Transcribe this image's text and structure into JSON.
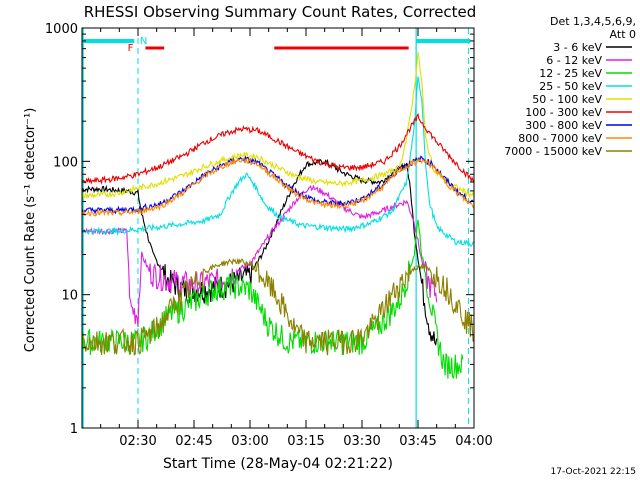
{
  "chart_data": {
    "type": "line",
    "title": "RHESSI Observing Summary Count Rates, Corrected",
    "xlabel": "Start Time (28-May-04 02:21:22)",
    "ylabel": "Corrected Count Rate (s⁻¹ detector⁻¹)",
    "y_scale": "log",
    "ylim": [
      1,
      1000
    ],
    "xlim_minutes": [
      -15,
      90
    ],
    "x_ticks": [
      {
        "t": 0,
        "label": "02:30"
      },
      {
        "t": 15,
        "label": "02:45"
      },
      {
        "t": 30,
        "label": "03:00"
      },
      {
        "t": 45,
        "label": "03:15"
      },
      {
        "t": 60,
        "label": "03:30"
      },
      {
        "t": 75,
        "label": "03:45"
      },
      {
        "t": 90,
        "label": "04:00"
      }
    ],
    "y_ticks": [
      {
        "v": 1,
        "label": "1"
      },
      {
        "v": 10,
        "label": "10"
      },
      {
        "v": 100,
        "label": "100"
      },
      {
        "v": 1000,
        "label": "1000"
      }
    ],
    "legend_header": [
      "Det 1,3,4,5,6,9,",
      "Att 0"
    ],
    "legend_position": "right",
    "series": [
      {
        "name": "3 - 6 keV",
        "color": "#000000",
        "points": [
          [
            -15,
            62
          ],
          [
            -10,
            62
          ],
          [
            -3,
            60
          ],
          [
            0,
            58
          ],
          [
            1,
            40
          ],
          [
            4,
            20
          ],
          [
            8,
            13
          ],
          [
            12,
            11
          ],
          [
            18,
            11
          ],
          [
            24,
            12
          ],
          [
            30,
            14
          ],
          [
            34,
            22
          ],
          [
            38,
            40
          ],
          [
            42,
            70
          ],
          [
            45,
            95
          ],
          [
            50,
            100
          ],
          [
            55,
            82
          ],
          [
            60,
            72
          ],
          [
            65,
            70
          ],
          [
            70,
            88
          ],
          [
            72,
            96
          ],
          [
            73,
            60
          ],
          [
            74,
            30
          ],
          [
            76,
            12
          ],
          [
            78,
            6
          ],
          [
            80,
            4
          ]
        ]
      },
      {
        "name": "6 - 12 keV",
        "color": "#e020e0",
        "points": [
          [
            -15,
            30
          ],
          [
            -3,
            30
          ],
          [
            -2,
            8
          ],
          [
            0,
            7
          ],
          [
            1,
            20
          ],
          [
            3,
            15
          ],
          [
            8,
            13
          ],
          [
            15,
            12
          ],
          [
            22,
            13
          ],
          [
            30,
            17
          ],
          [
            36,
            30
          ],
          [
            42,
            50
          ],
          [
            46,
            65
          ],
          [
            50,
            58
          ],
          [
            55,
            45
          ],
          [
            60,
            38
          ],
          [
            65,
            42
          ],
          [
            70,
            48
          ],
          [
            72,
            50
          ],
          [
            74,
            35
          ],
          [
            76,
            18
          ],
          [
            78,
            12
          ],
          [
            80,
            10
          ]
        ]
      },
      {
        "name": "12 - 25 keV",
        "color": "#00dd00",
        "points": [
          [
            -15,
            4.5
          ],
          [
            -3,
            4.5
          ],
          [
            0,
            4.5
          ],
          [
            3,
            5
          ],
          [
            8,
            7
          ],
          [
            15,
            9
          ],
          [
            20,
            11
          ],
          [
            25,
            12
          ],
          [
            30,
            11
          ],
          [
            35,
            6
          ],
          [
            40,
            4.5
          ],
          [
            50,
            4.5
          ],
          [
            60,
            4.5
          ],
          [
            65,
            6
          ],
          [
            70,
            9
          ],
          [
            74,
            20
          ],
          [
            75,
            38
          ],
          [
            76,
            20
          ],
          [
            78,
            10
          ],
          [
            80,
            5
          ],
          [
            82,
            3
          ],
          [
            87,
            3
          ]
        ]
      },
      {
        "name": "25 - 50 keV",
        "color": "#00e0e0",
        "points": [
          [
            -15,
            30
          ],
          [
            -5,
            30
          ],
          [
            0,
            31
          ],
          [
            5,
            32
          ],
          [
            12,
            34
          ],
          [
            18,
            36
          ],
          [
            22,
            40
          ],
          [
            25,
            58
          ],
          [
            27,
            70
          ],
          [
            29,
            80
          ],
          [
            31,
            68
          ],
          [
            34,
            48
          ],
          [
            38,
            38
          ],
          [
            44,
            33
          ],
          [
            50,
            32
          ],
          [
            56,
            31
          ],
          [
            62,
            34
          ],
          [
            68,
            42
          ],
          [
            72,
            70
          ],
          [
            74,
            180
          ],
          [
            75,
            420
          ],
          [
            76,
            300
          ],
          [
            77,
            100
          ],
          [
            78,
            50
          ],
          [
            80,
            32
          ],
          [
            85,
            25
          ],
          [
            90,
            24
          ]
        ]
      },
      {
        "name": "50 - 100 keV",
        "color": "#e0e000",
        "points": [
          [
            -15,
            55
          ],
          [
            -10,
            56
          ],
          [
            -5,
            58
          ],
          [
            0,
            63
          ],
          [
            5,
            68
          ],
          [
            12,
            78
          ],
          [
            18,
            92
          ],
          [
            24,
            105
          ],
          [
            28,
            112
          ],
          [
            32,
            108
          ],
          [
            36,
            94
          ],
          [
            42,
            78
          ],
          [
            48,
            70
          ],
          [
            54,
            68
          ],
          [
            60,
            72
          ],
          [
            66,
            80
          ],
          [
            70,
            90
          ],
          [
            72,
            150
          ],
          [
            74,
            350
          ],
          [
            75,
            650
          ],
          [
            76,
            400
          ],
          [
            77,
            150
          ],
          [
            79,
            90
          ],
          [
            82,
            72
          ],
          [
            86,
            62
          ],
          [
            90,
            55
          ]
        ]
      },
      {
        "name": "100 - 300 keV",
        "color": "#ee0000",
        "points": [
          [
            -15,
            70
          ],
          [
            -10,
            72
          ],
          [
            -5,
            75
          ],
          [
            0,
            80
          ],
          [
            6,
            92
          ],
          [
            12,
            110
          ],
          [
            18,
            140
          ],
          [
            24,
            165
          ],
          [
            28,
            175
          ],
          [
            32,
            170
          ],
          [
            36,
            150
          ],
          [
            42,
            120
          ],
          [
            48,
            100
          ],
          [
            54,
            90
          ],
          [
            60,
            90
          ],
          [
            66,
            100
          ],
          [
            70,
            130
          ],
          [
            73,
            180
          ],
          [
            75,
            215
          ],
          [
            77,
            180
          ],
          [
            80,
            140
          ],
          [
            84,
            105
          ],
          [
            88,
            80
          ],
          [
            90,
            70
          ]
        ]
      },
      {
        "name": "300 - 800 keV",
        "color": "#0000ee",
        "points": [
          [
            -15,
            43
          ],
          [
            -10,
            43
          ],
          [
            -5,
            43
          ],
          [
            0,
            44
          ],
          [
            6,
            48
          ],
          [
            12,
            60
          ],
          [
            18,
            80
          ],
          [
            24,
            98
          ],
          [
            28,
            105
          ],
          [
            32,
            98
          ],
          [
            36,
            80
          ],
          [
            42,
            60
          ],
          [
            48,
            50
          ],
          [
            54,
            48
          ],
          [
            60,
            52
          ],
          [
            66,
            68
          ],
          [
            70,
            88
          ],
          [
            74,
            100
          ],
          [
            76,
            105
          ],
          [
            79,
            95
          ],
          [
            82,
            75
          ],
          [
            86,
            58
          ],
          [
            90,
            48
          ]
        ]
      },
      {
        "name": "800 - 7000 keV",
        "color": "#ff8800",
        "points": [
          [
            -15,
            41
          ],
          [
            -10,
            41
          ],
          [
            -5,
            41
          ],
          [
            0,
            42
          ],
          [
            6,
            46
          ],
          [
            12,
            58
          ],
          [
            18,
            78
          ],
          [
            24,
            96
          ],
          [
            28,
            103
          ],
          [
            32,
            96
          ],
          [
            36,
            78
          ],
          [
            42,
            58
          ],
          [
            48,
            48
          ],
          [
            54,
            46
          ],
          [
            60,
            50
          ],
          [
            66,
            66
          ],
          [
            70,
            86
          ],
          [
            74,
            98
          ],
          [
            76,
            102
          ],
          [
            79,
            92
          ],
          [
            82,
            72
          ],
          [
            86,
            56
          ],
          [
            90,
            46
          ]
        ]
      },
      {
        "name": "7000 - 15000 keV",
        "color": "#8b8000",
        "points": [
          [
            -15,
            4.5
          ],
          [
            -10,
            4.5
          ],
          [
            -5,
            4.5
          ],
          [
            0,
            4.5
          ],
          [
            3,
            5
          ],
          [
            6,
            6
          ],
          [
            9,
            8
          ],
          [
            12,
            10
          ],
          [
            15,
            12
          ],
          [
            18,
            15
          ],
          [
            22,
            17
          ],
          [
            26,
            18
          ],
          [
            30,
            17
          ],
          [
            33,
            14
          ],
          [
            36,
            11
          ],
          [
            39,
            8
          ],
          [
            42,
            5.5
          ],
          [
            45,
            4.5
          ],
          [
            55,
            4.5
          ],
          [
            60,
            4.8
          ],
          [
            64,
            6.5
          ],
          [
            68,
            10
          ],
          [
            71,
            13
          ],
          [
            74,
            16
          ],
          [
            77,
            16
          ],
          [
            80,
            14
          ],
          [
            83,
            11
          ],
          [
            86,
            8
          ],
          [
            88,
            6.5
          ],
          [
            90,
            5.5
          ]
        ]
      }
    ],
    "markers": [
      {
        "label": "F",
        "color": "#ee0000"
      },
      {
        "label": "N",
        "color": "#00e0e0"
      }
    ],
    "timestamp": "17-Oct-2021 22:15"
  }
}
